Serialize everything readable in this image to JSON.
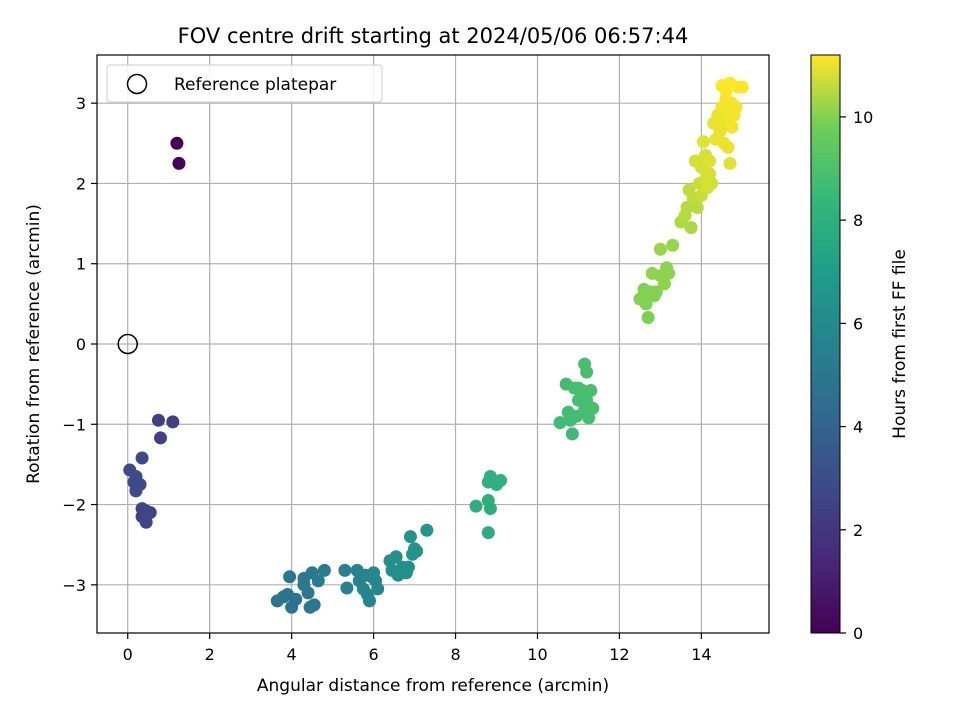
{
  "chart_data": {
    "type": "scatter",
    "title": "FOV centre drift starting at 2024/05/06 06:57:44",
    "xlabel": "Angular distance from reference (arcmin)",
    "ylabel": "Rotation from reference (arcmin)",
    "colorbar_label": "Hours from first FF file",
    "colormap": "viridis",
    "xlim": [
      -0.75,
      15.65
    ],
    "ylim": [
      -3.6,
      3.6
    ],
    "x_ticks": [
      0,
      2,
      4,
      6,
      8,
      10,
      12,
      14
    ],
    "y_ticks": [
      -3,
      -2,
      -1,
      0,
      1,
      2,
      3
    ],
    "colorbar_range": [
      0,
      11.2
    ],
    "colorbar_ticks": [
      0,
      2,
      4,
      6,
      8,
      10
    ],
    "grid": true,
    "legend": {
      "position": "top-left",
      "entries": [
        {
          "label": "Reference platepar",
          "marker": "open-circle"
        }
      ]
    },
    "reference_point": {
      "x": 0,
      "y": 0
    },
    "points": [
      {
        "x": 1.2,
        "y": 2.5,
        "h": 0.0
      },
      {
        "x": 1.25,
        "y": 2.25,
        "h": 0.1
      },
      {
        "x": 0.05,
        "y": -1.57,
        "h": 2.9
      },
      {
        "x": 0.2,
        "y": -1.65,
        "h": 2.9
      },
      {
        "x": 0.15,
        "y": -1.72,
        "h": 2.9
      },
      {
        "x": 0.3,
        "y": -1.75,
        "h": 2.9
      },
      {
        "x": 0.2,
        "y": -1.83,
        "h": 2.9
      },
      {
        "x": 0.35,
        "y": -1.42,
        "h": 2.8
      },
      {
        "x": 0.35,
        "y": -2.05,
        "h": 2.6
      },
      {
        "x": 0.45,
        "y": -2.08,
        "h": 2.6
      },
      {
        "x": 0.55,
        "y": -2.1,
        "h": 2.6
      },
      {
        "x": 0.35,
        "y": -2.15,
        "h": 2.6
      },
      {
        "x": 0.45,
        "y": -2.22,
        "h": 2.6
      },
      {
        "x": 0.75,
        "y": -0.95,
        "h": 2.4
      },
      {
        "x": 1.1,
        "y": -0.97,
        "h": 2.4
      },
      {
        "x": 0.8,
        "y": -1.17,
        "h": 2.4
      },
      {
        "x": 3.65,
        "y": -3.2,
        "h": 4.9
      },
      {
        "x": 3.8,
        "y": -3.15,
        "h": 4.9
      },
      {
        "x": 3.9,
        "y": -3.12,
        "h": 4.8
      },
      {
        "x": 4.0,
        "y": -3.28,
        "h": 4.8
      },
      {
        "x": 4.1,
        "y": -3.18,
        "h": 4.8
      },
      {
        "x": 3.95,
        "y": -2.9,
        "h": 4.9
      },
      {
        "x": 4.3,
        "y": -3.0,
        "h": 5.0
      },
      {
        "x": 4.4,
        "y": -3.1,
        "h": 5.0
      },
      {
        "x": 4.45,
        "y": -3.28,
        "h": 5.0
      },
      {
        "x": 4.55,
        "y": -3.25,
        "h": 5.0
      },
      {
        "x": 4.5,
        "y": -2.85,
        "h": 5.1
      },
      {
        "x": 4.65,
        "y": -2.95,
        "h": 5.1
      },
      {
        "x": 4.8,
        "y": -2.82,
        "h": 5.2
      },
      {
        "x": 4.3,
        "y": -2.92,
        "h": 5.0
      },
      {
        "x": 5.3,
        "y": -2.82,
        "h": 5.6
      },
      {
        "x": 5.35,
        "y": -3.04,
        "h": 5.6
      },
      {
        "x": 5.6,
        "y": -2.82,
        "h": 5.7
      },
      {
        "x": 5.65,
        "y": -2.95,
        "h": 5.7
      },
      {
        "x": 5.75,
        "y": -3.05,
        "h": 5.7
      },
      {
        "x": 5.8,
        "y": -2.88,
        "h": 5.7
      },
      {
        "x": 5.85,
        "y": -3.12,
        "h": 5.8
      },
      {
        "x": 5.9,
        "y": -3.2,
        "h": 5.8
      },
      {
        "x": 5.95,
        "y": -2.9,
        "h": 5.8
      },
      {
        "x": 6.05,
        "y": -2.95,
        "h": 5.8
      },
      {
        "x": 6.1,
        "y": -3.05,
        "h": 5.8
      },
      {
        "x": 6.0,
        "y": -2.85,
        "h": 5.9
      },
      {
        "x": 6.4,
        "y": -2.7,
        "h": 6.2
      },
      {
        "x": 6.45,
        "y": -2.82,
        "h": 6.2
      },
      {
        "x": 6.55,
        "y": -2.65,
        "h": 6.3
      },
      {
        "x": 6.6,
        "y": -2.88,
        "h": 6.3
      },
      {
        "x": 6.7,
        "y": -2.78,
        "h": 6.3
      },
      {
        "x": 6.85,
        "y": -2.78,
        "h": 6.3
      },
      {
        "x": 6.9,
        "y": -2.4,
        "h": 6.5
      },
      {
        "x": 6.95,
        "y": -2.62,
        "h": 6.5
      },
      {
        "x": 7.0,
        "y": -2.55,
        "h": 6.5
      },
      {
        "x": 7.05,
        "y": -2.58,
        "h": 6.5
      },
      {
        "x": 7.3,
        "y": -2.32,
        "h": 6.6
      },
      {
        "x": 6.8,
        "y": -2.85,
        "h": 6.3
      },
      {
        "x": 8.5,
        "y": -2.02,
        "h": 7.9
      },
      {
        "x": 8.8,
        "y": -1.95,
        "h": 7.9
      },
      {
        "x": 8.85,
        "y": -2.05,
        "h": 7.9
      },
      {
        "x": 8.8,
        "y": -2.35,
        "h": 7.8
      },
      {
        "x": 8.8,
        "y": -1.72,
        "h": 8.0
      },
      {
        "x": 8.85,
        "y": -1.65,
        "h": 8.0
      },
      {
        "x": 9.0,
        "y": -1.75,
        "h": 8.0
      },
      {
        "x": 9.1,
        "y": -1.7,
        "h": 8.0
      },
      {
        "x": 10.55,
        "y": -0.98,
        "h": 8.6
      },
      {
        "x": 10.7,
        "y": -0.5,
        "h": 8.7
      },
      {
        "x": 10.75,
        "y": -0.85,
        "h": 8.7
      },
      {
        "x": 10.8,
        "y": -0.95,
        "h": 8.7
      },
      {
        "x": 10.85,
        "y": -1.12,
        "h": 8.6
      },
      {
        "x": 10.9,
        "y": -0.55,
        "h": 8.8
      },
      {
        "x": 10.95,
        "y": -0.9,
        "h": 8.7
      },
      {
        "x": 11.0,
        "y": -0.55,
        "h": 8.8
      },
      {
        "x": 11.05,
        "y": -0.68,
        "h": 8.8
      },
      {
        "x": 11.1,
        "y": -0.58,
        "h": 8.8
      },
      {
        "x": 11.15,
        "y": -0.25,
        "h": 8.9
      },
      {
        "x": 11.15,
        "y": -0.82,
        "h": 8.8
      },
      {
        "x": 11.2,
        "y": -0.7,
        "h": 8.8
      },
      {
        "x": 11.2,
        "y": -0.35,
        "h": 8.9
      },
      {
        "x": 11.25,
        "y": -0.92,
        "h": 8.8
      },
      {
        "x": 11.3,
        "y": -0.58,
        "h": 8.9
      },
      {
        "x": 11.35,
        "y": -0.8,
        "h": 8.9
      },
      {
        "x": 11.0,
        "y": -0.7,
        "h": 8.8
      },
      {
        "x": 12.5,
        "y": 0.56,
        "h": 10.0
      },
      {
        "x": 12.6,
        "y": 0.68,
        "h": 10.0
      },
      {
        "x": 12.65,
        "y": 0.5,
        "h": 10.0
      },
      {
        "x": 12.7,
        "y": 0.33,
        "h": 9.9
      },
      {
        "x": 12.75,
        "y": 0.65,
        "h": 10.0
      },
      {
        "x": 12.8,
        "y": 0.88,
        "h": 10.1
      },
      {
        "x": 12.85,
        "y": 0.6,
        "h": 10.0
      },
      {
        "x": 12.9,
        "y": 0.65,
        "h": 10.0
      },
      {
        "x": 13.0,
        "y": 0.85,
        "h": 10.1
      },
      {
        "x": 13.0,
        "y": 1.18,
        "h": 10.2
      },
      {
        "x": 13.1,
        "y": 0.75,
        "h": 10.1
      },
      {
        "x": 13.15,
        "y": 0.95,
        "h": 10.1
      },
      {
        "x": 13.2,
        "y": 0.88,
        "h": 10.1
      },
      {
        "x": 13.3,
        "y": 1.23,
        "h": 10.2
      },
      {
        "x": 13.5,
        "y": 1.52,
        "h": 10.4
      },
      {
        "x": 13.6,
        "y": 1.6,
        "h": 10.5
      },
      {
        "x": 13.65,
        "y": 1.7,
        "h": 10.5
      },
      {
        "x": 13.7,
        "y": 1.92,
        "h": 10.6
      },
      {
        "x": 13.75,
        "y": 1.45,
        "h": 10.4
      },
      {
        "x": 13.8,
        "y": 1.82,
        "h": 10.6
      },
      {
        "x": 13.85,
        "y": 2.28,
        "h": 10.8
      },
      {
        "x": 13.9,
        "y": 1.7,
        "h": 10.5
      },
      {
        "x": 13.95,
        "y": 2.0,
        "h": 10.7
      },
      {
        "x": 14.0,
        "y": 2.2,
        "h": 10.8
      },
      {
        "x": 14.0,
        "y": 1.85,
        "h": 10.7
      },
      {
        "x": 14.05,
        "y": 2.52,
        "h": 10.9
      },
      {
        "x": 14.1,
        "y": 2.05,
        "h": 10.8
      },
      {
        "x": 14.1,
        "y": 2.35,
        "h": 10.8
      },
      {
        "x": 14.15,
        "y": 1.95,
        "h": 10.8
      },
      {
        "x": 14.2,
        "y": 2.12,
        "h": 10.8
      },
      {
        "x": 14.2,
        "y": 2.28,
        "h": 10.9
      },
      {
        "x": 14.25,
        "y": 2.0,
        "h": 10.8
      },
      {
        "x": 14.3,
        "y": 2.75,
        "h": 11.0
      },
      {
        "x": 14.35,
        "y": 2.55,
        "h": 11.0
      },
      {
        "x": 14.4,
        "y": 2.85,
        "h": 11.0
      },
      {
        "x": 14.45,
        "y": 2.65,
        "h": 11.0
      },
      {
        "x": 14.5,
        "y": 2.95,
        "h": 11.1
      },
      {
        "x": 14.5,
        "y": 3.22,
        "h": 11.2
      },
      {
        "x": 14.55,
        "y": 2.72,
        "h": 11.0
      },
      {
        "x": 14.55,
        "y": 2.5,
        "h": 11.0
      },
      {
        "x": 14.6,
        "y": 3.05,
        "h": 11.1
      },
      {
        "x": 14.6,
        "y": 2.8,
        "h": 11.1
      },
      {
        "x": 14.65,
        "y": 2.45,
        "h": 11.0
      },
      {
        "x": 14.65,
        "y": 2.95,
        "h": 11.1
      },
      {
        "x": 14.7,
        "y": 3.25,
        "h": 11.2
      },
      {
        "x": 14.7,
        "y": 2.25,
        "h": 10.9
      },
      {
        "x": 14.75,
        "y": 2.7,
        "h": 11.1
      },
      {
        "x": 14.75,
        "y": 3.0,
        "h": 11.1
      },
      {
        "x": 14.8,
        "y": 2.85,
        "h": 11.1
      },
      {
        "x": 14.85,
        "y": 2.95,
        "h": 11.1
      },
      {
        "x": 14.9,
        "y": 3.2,
        "h": 11.2
      },
      {
        "x": 15.0,
        "y": 3.2,
        "h": 11.2
      },
      {
        "x": 14.45,
        "y": 2.8,
        "h": 11.0
      },
      {
        "x": 14.6,
        "y": 3.15,
        "h": 11.2
      }
    ]
  }
}
